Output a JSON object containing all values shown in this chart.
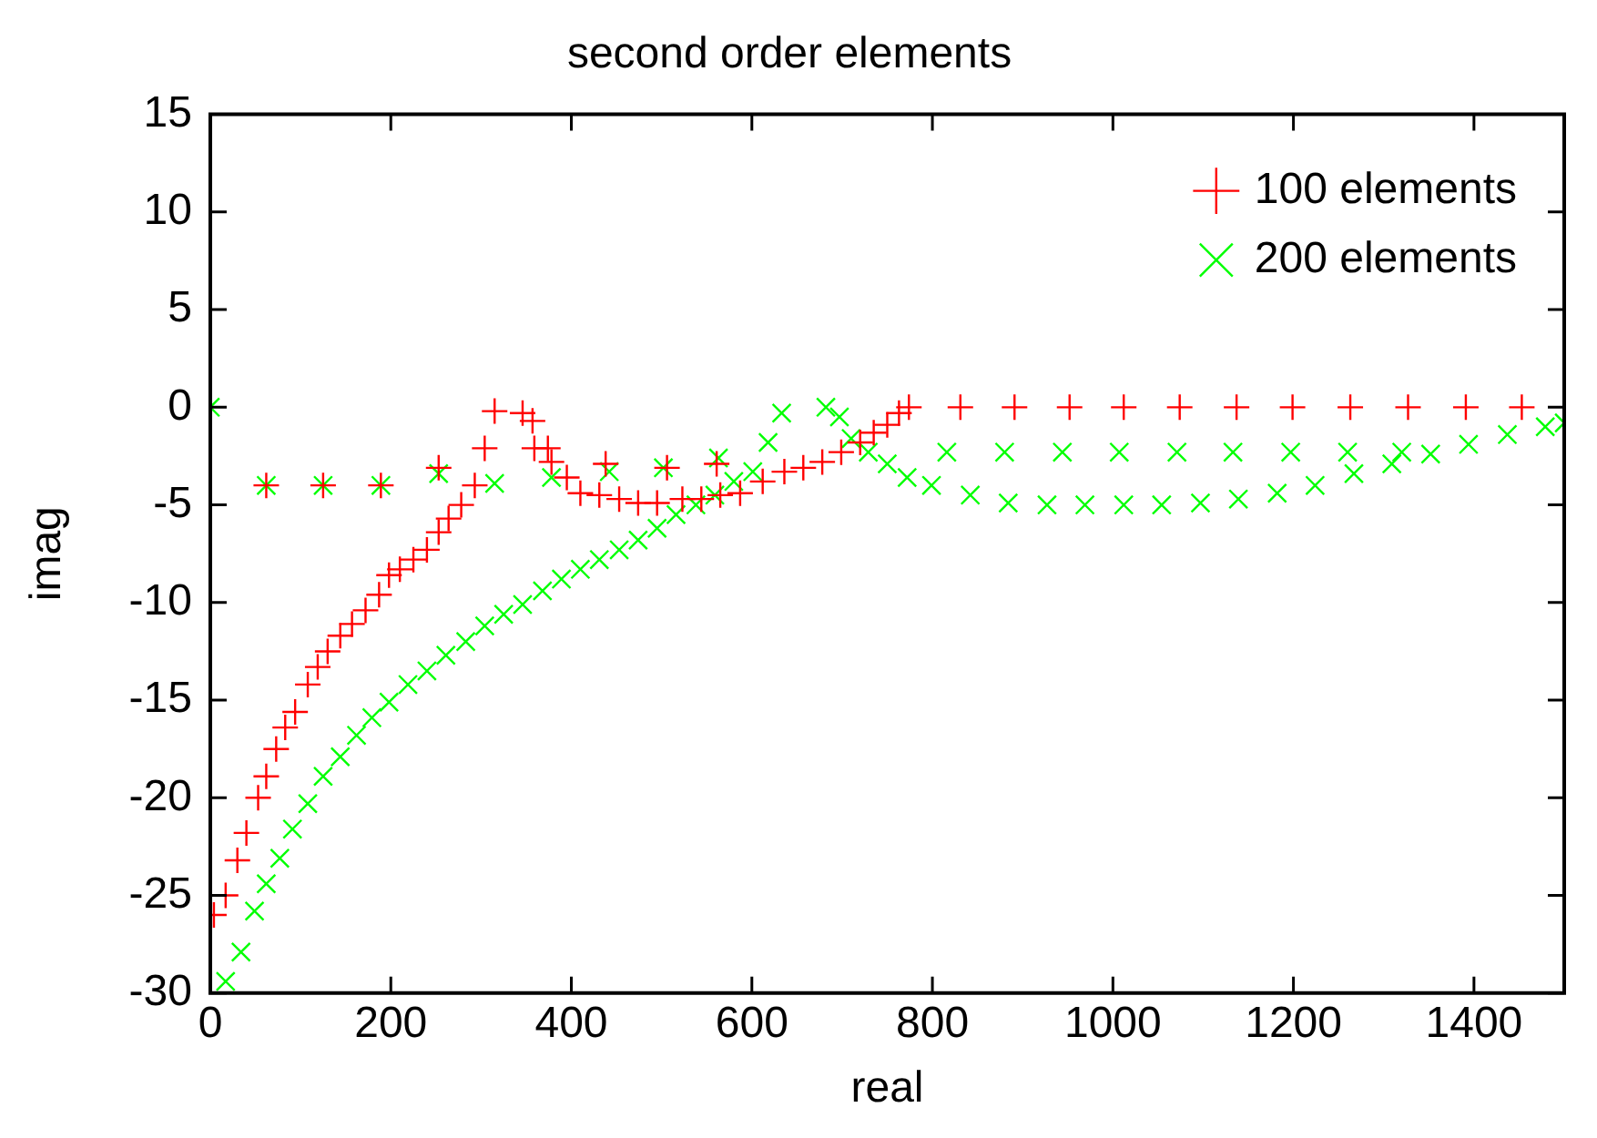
{
  "chart_data": {
    "type": "scatter",
    "title": "second order elements",
    "xlabel": "real",
    "ylabel": "imag",
    "xlim": [
      0,
      1500
    ],
    "xticks": [
      0,
      200,
      400,
      600,
      800,
      1000,
      1200,
      1400
    ],
    "ylim": [
      -30,
      15
    ],
    "yticks": [
      -30,
      -25,
      -20,
      -15,
      -10,
      -5,
      0,
      5,
      10,
      15
    ],
    "grid": false,
    "legend": "top right",
    "series": [
      {
        "name": "100 elements",
        "color": "#ff0000",
        "marker": "cross",
        "x": [
          4,
          17,
          30,
          40,
          53,
          62,
          73,
          83,
          94,
          108,
          119,
          130,
          144,
          157,
          172,
          187,
          198,
          210,
          225,
          240,
          253,
          264,
          278,
          293,
          304,
          315,
          346,
          357,
          359,
          374,
          378,
          395,
          410,
          431,
          453,
          474,
          495,
          523,
          544,
          565,
          587,
          612,
          636,
          657,
          678,
          699,
          720,
          735,
          750,
          763,
          774,
          62,
          125,
          189,
          253,
          438,
          506,
          561,
          831,
          891,
          952,
          1012,
          1074,
          1137,
          1199,
          1263,
          1327,
          1391,
          1453
        ],
        "values": [
          -26,
          -25,
          -23.2,
          -21.8,
          -20,
          -18.9,
          -17.5,
          -16.4,
          -15.6,
          -14.2,
          -13.3,
          -12.5,
          -11.7,
          -11.1,
          -10.4,
          -9.6,
          -8.6,
          -8.3,
          -7.8,
          -7.3,
          -6.4,
          -5.7,
          -5,
          -4,
          -2.1,
          -0.2,
          -0.3,
          -0.7,
          -2.1,
          -2.1,
          -2.8,
          -3.6,
          -4.4,
          -4.5,
          -4.7,
          -4.9,
          -4.9,
          -4.7,
          -4.7,
          -4.5,
          -4.4,
          -3.8,
          -3.3,
          -3.1,
          -2.8,
          -2.3,
          -1.8,
          -1.3,
          -0.9,
          -0.3,
          0,
          -4,
          -4,
          -4,
          -3.1,
          -2.9,
          -3.1,
          -2.9,
          0,
          0,
          0,
          0,
          0,
          0,
          0,
          0,
          0,
          0,
          0
        ]
      },
      {
        "name": "200 elements",
        "color": "#00ff00",
        "marker": "x",
        "x": [
          0,
          17,
          34,
          49,
          62,
          77,
          91,
          108,
          125,
          144,
          162,
          179,
          198,
          219,
          240,
          261,
          283,
          304,
          325,
          346,
          368,
          389,
          410,
          431,
          453,
          474,
          495,
          516,
          538,
          559,
          580,
          601,
          618,
          633,
          682,
          697,
          710,
          729,
          750,
          772,
          799,
          842,
          884,
          927,
          969,
          1012,
          1054,
          1097,
          1139,
          1182,
          1224,
          1267,
          1309,
          1352,
          1394,
          1437,
          1479,
          1500,
          62,
          125,
          189,
          253,
          315,
          378,
          442,
          502,
          563,
          816,
          880,
          944,
          1007,
          1071,
          1133,
          1197,
          1260,
          1320
        ],
        "values": [
          0,
          -29.4,
          -27.9,
          -25.8,
          -24.4,
          -23.1,
          -21.6,
          -20.3,
          -18.9,
          -17.9,
          -16.8,
          -15.9,
          -15.1,
          -14.2,
          -13.5,
          -12.7,
          -12,
          -11.2,
          -10.6,
          -10.1,
          -9.4,
          -8.8,
          -8.3,
          -7.8,
          -7.3,
          -6.8,
          -6.2,
          -5.5,
          -5,
          -4.5,
          -3.8,
          -3.3,
          -1.8,
          -0.3,
          0,
          -0.5,
          -1.6,
          -2.3,
          -2.9,
          -3.6,
          -4,
          -4.5,
          -4.9,
          -5,
          -5,
          -5,
          -5,
          -4.9,
          -4.7,
          -4.4,
          -4,
          -3.4,
          -2.9,
          -2.4,
          -1.9,
          -1.4,
          -1,
          -0.8,
          -4,
          -4,
          -4,
          -3.4,
          -3.9,
          -3.6,
          -3.3,
          -3.1,
          -2.6,
          -2.3,
          -2.3,
          -2.3,
          -2.3,
          -2.3,
          -2.3,
          -2.3,
          -2.3,
          -2.3
        ]
      }
    ]
  }
}
